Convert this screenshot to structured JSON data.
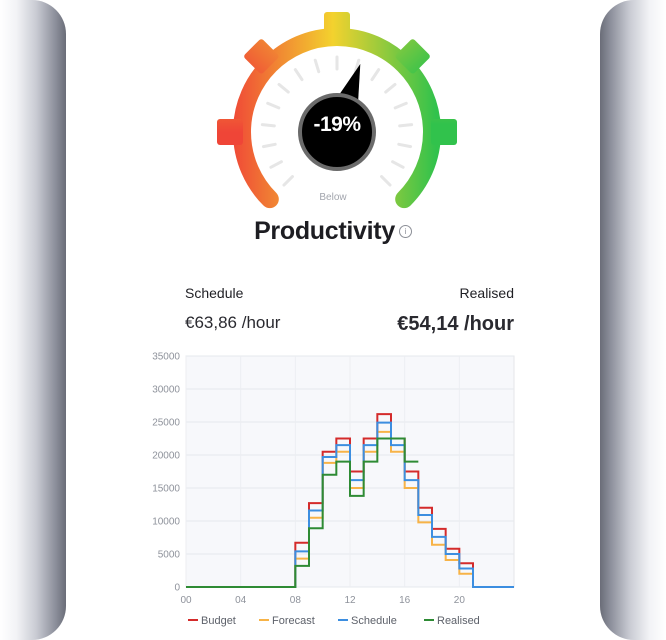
{
  "gauge": {
    "value_text": "-19%",
    "sub_label": "Below",
    "needle_fraction": 0.57,
    "colors": {
      "low": "#ef4537",
      "mid": "#f3d22e",
      "high": "#31c24c",
      "center": "#000000",
      "ring": "#6b6b6b",
      "ticks": "#e6e6e6"
    }
  },
  "title": "Productivity",
  "info_icon": "info-icon",
  "schedule": {
    "label": "Schedule",
    "value": "€63,86 /hour"
  },
  "realised": {
    "label": "Realised",
    "value": "€54,14 /hour"
  },
  "chart_data": {
    "type": "line",
    "step": true,
    "x": [
      0,
      1,
      2,
      3,
      4,
      5,
      6,
      7,
      8,
      9,
      10,
      11,
      12,
      13,
      14,
      15,
      16,
      17,
      18,
      19,
      20,
      21,
      22,
      23,
      24
    ],
    "x_tick_labels": [
      "00",
      "04",
      "08",
      "12",
      "16",
      "20"
    ],
    "x_tick_values": [
      0,
      4,
      8,
      12,
      16,
      20
    ],
    "y_tick_labels": [
      "0",
      "5000",
      "10000",
      "15000",
      "20000",
      "25000",
      "30000",
      "35000"
    ],
    "ylim": [
      0,
      35000
    ],
    "grid": true,
    "legend_position": "bottom",
    "series": [
      {
        "name": "Budget",
        "color": "#d42b2b",
        "values": [
          0,
          0,
          0,
          0,
          0,
          0,
          0,
          0,
          6700,
          12700,
          20500,
          22500,
          17500,
          22500,
          26200,
          22500,
          17500,
          12000,
          8800,
          5800,
          3600,
          0,
          0,
          0,
          0
        ]
      },
      {
        "name": "Forecast",
        "color": "#f7b347",
        "values": [
          0,
          0,
          0,
          0,
          0,
          0,
          0,
          0,
          4300,
          10500,
          18800,
          20500,
          15000,
          20500,
          23500,
          20500,
          15000,
          9800,
          6400,
          4100,
          2000,
          0,
          0,
          0,
          0
        ]
      },
      {
        "name": "Schedule",
        "color": "#3c8ee0",
        "values": [
          0,
          0,
          0,
          0,
          0,
          0,
          0,
          0,
          5400,
          11600,
          19700,
          21500,
          16200,
          21500,
          24900,
          21500,
          16200,
          10900,
          7600,
          5000,
          2800,
          0,
          0,
          0,
          0
        ]
      },
      {
        "name": "Realised",
        "color": "#2e8b34",
        "values": [
          0,
          0,
          0,
          0,
          0,
          0,
          0,
          0,
          3200,
          8900,
          17000,
          19000,
          13800,
          19000,
          22500,
          22500,
          19000,
          null,
          null,
          null,
          null,
          null,
          null,
          null,
          null
        ]
      }
    ]
  }
}
